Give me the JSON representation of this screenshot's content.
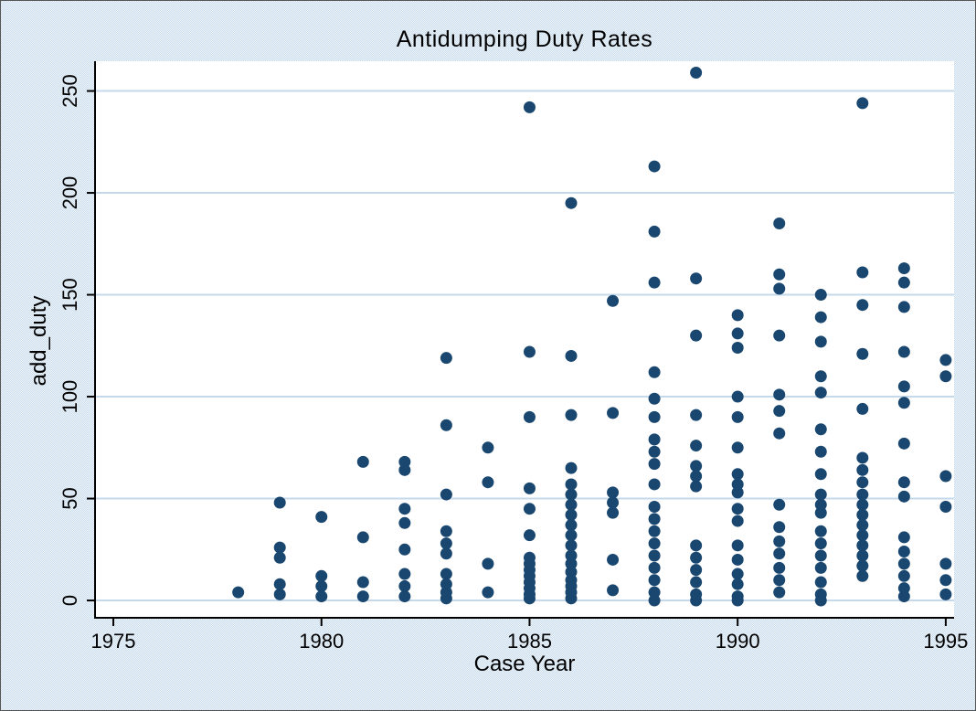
{
  "chart_data": {
    "type": "scatter",
    "title": "Antidumping Duty Rates",
    "xlabel": "Case Year",
    "ylabel": "add_duty",
    "xticks": [
      1975,
      1980,
      1985,
      1990,
      1995
    ],
    "yticks": [
      0,
      50,
      100,
      150,
      200,
      250
    ],
    "xlim": [
      1974.56,
      1995.2
    ],
    "ylim": [
      -8.5,
      264.6
    ],
    "grid": true,
    "legend_position": "none",
    "marker_shape": "circle",
    "colors": {
      "marker": "#1a476f",
      "background": "#dde8f2",
      "plot_background": "#ffffff",
      "gridline": "#c5d9ea",
      "axis": "#000000",
      "text": "#000000"
    },
    "series": [
      {
        "name": "add_duty",
        "points": [
          {
            "x": 1978,
            "ys": [
              4
            ]
          },
          {
            "x": 1979,
            "ys": [
              3,
              8,
              21,
              26,
              48
            ]
          },
          {
            "x": 1980,
            "ys": [
              2,
              7,
              12,
              41
            ]
          },
          {
            "x": 1981,
            "ys": [
              2,
              9,
              31,
              68
            ]
          },
          {
            "x": 1982,
            "ys": [
              2,
              7,
              13,
              25,
              38,
              45,
              64,
              68
            ]
          },
          {
            "x": 1983,
            "ys": [
              1,
              4,
              8,
              13,
              23,
              28,
              34,
              52,
              86,
              119
            ]
          },
          {
            "x": 1984,
            "ys": [
              4,
              18,
              58,
              75
            ]
          },
          {
            "x": 1985,
            "ys": [
              1,
              3,
              6,
              9,
              12,
              15,
              18,
              21,
              32,
              45,
              55,
              90,
              122,
              242
            ]
          },
          {
            "x": 1986,
            "ys": [
              1,
              4,
              7,
              10,
              14,
              18,
              22,
              27,
              32,
              37,
              42,
              47,
              52,
              57,
              65,
              91,
              120,
              195
            ]
          },
          {
            "x": 1987,
            "ys": [
              5,
              20,
              43,
              48,
              53,
              92,
              147
            ]
          },
          {
            "x": 1988,
            "ys": [
              0,
              4,
              10,
              16,
              22,
              28,
              34,
              40,
              46,
              57,
              67,
              73,
              79,
              90,
              99,
              112,
              156,
              181,
              213
            ]
          },
          {
            "x": 1989,
            "ys": [
              0,
              3,
              9,
              15,
              21,
              27,
              56,
              61,
              66,
              76,
              91,
              130,
              158,
              259
            ]
          },
          {
            "x": 1990,
            "ys": [
              0,
              2,
              8,
              13,
              20,
              27,
              39,
              45,
              53,
              57,
              62,
              75,
              90,
              100,
              124,
              131,
              140
            ]
          },
          {
            "x": 1991,
            "ys": [
              4,
              10,
              16,
              23,
              29,
              36,
              47,
              82,
              93,
              101,
              130,
              153,
              160,
              185
            ]
          },
          {
            "x": 1992,
            "ys": [
              0,
              3,
              9,
              16,
              22,
              28,
              34,
              43,
              47,
              52,
              62,
              73,
              84,
              102,
              110,
              127,
              139,
              150
            ]
          },
          {
            "x": 1993,
            "ys": [
              12,
              17,
              22,
              27,
              32,
              37,
              42,
              47,
              52,
              58,
              64,
              70,
              94,
              121,
              145,
              161,
              244
            ]
          },
          {
            "x": 1994,
            "ys": [
              2,
              6,
              12,
              18,
              24,
              31,
              51,
              58,
              77,
              97,
              105,
              122,
              144,
              156,
              163
            ]
          },
          {
            "x": 1995,
            "ys": [
              3,
              10,
              18,
              46,
              61,
              110,
              118
            ]
          }
        ]
      }
    ]
  }
}
